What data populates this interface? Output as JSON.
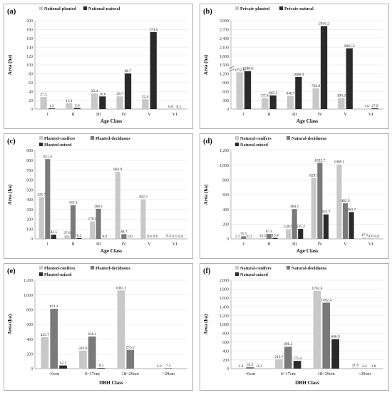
{
  "colors": {
    "c1": "#c8c8c8",
    "c2": "#7a7a7a",
    "c3": "#2a2a2a",
    "border": "#9a9a9a",
    "grid": "#e4e4e4"
  },
  "chart_data": [
    {
      "panel": "(a)",
      "type": "bar",
      "ylabel": "Area (ha)",
      "xlabel": "Age Class",
      "ylim": [
        0,
        200
      ],
      "yticks": [
        0,
        20,
        40,
        60,
        80,
        100,
        120,
        140,
        160,
        180,
        200
      ],
      "categories": [
        "I",
        "II",
        "III",
        "IV",
        "V",
        "VI"
      ],
      "legend_position": "top-left",
      "series": [
        {
          "name": "National-planted",
          "color": "c1",
          "values": [
            27.5,
            13.3,
            35.4,
            28.7,
            22.4,
            0.0
          ],
          "labels": [
            "27.5",
            "13.3",
            "35.4",
            "28.7",
            "22.4",
            "0.0"
          ]
        },
        {
          "name": "National-natural",
          "color": "c3",
          "values": [
            1.5,
            2.6,
            28.6,
            80.7,
            174.5,
            0.1
          ],
          "labels": [
            "1.5",
            "2.6",
            "28.6",
            "80.7",
            "174.5",
            "0.1"
          ]
        }
      ]
    },
    {
      "panel": "(b)",
      "type": "bar",
      "ylabel": "Area (ha)",
      "xlabel": "Age Class",
      "ylim": [
        0,
        3000
      ],
      "yticks": [
        0,
        300,
        600,
        900,
        1200,
        1500,
        1800,
        2100,
        2400,
        2700,
        3000
      ],
      "yticklabels": [
        "0",
        "300",
        "600",
        "900",
        "1,200",
        "1,500",
        "1,800",
        "2,100",
        "2,400",
        "2,700",
        "3,000"
      ],
      "scale": "broken",
      "categories": [
        "I",
        "II",
        "III",
        "IV",
        "V",
        "VI"
      ],
      "legend_position": "top-left",
      "series": [
        {
          "name": "Private-planted",
          "color": "c1",
          "values": [
            1252.0,
            375.6,
            448.7,
            702.9,
            380.3,
            7.0
          ],
          "labels": [
            "1252.0",
            "375.6",
            "448.7",
            "702.9",
            "380.3",
            "7.0"
          ]
        },
        {
          "name": "Private-natural",
          "color": "c3",
          "values": [
            1288.6,
            465.3,
            1088.9,
            2816.2,
            2061.5,
            27.9
          ],
          "labels": [
            "1288.6",
            "465.3",
            "1088.9",
            "2816.2",
            "2061.5",
            "27.9"
          ]
        }
      ]
    },
    {
      "panel": "(c)",
      "type": "bar",
      "ylabel": "Area (ha)",
      "xlabel": "Age Class",
      "ylim": [
        0,
        900
      ],
      "yticks": [
        0,
        100,
        200,
        300,
        400,
        500,
        600,
        700,
        800,
        900
      ],
      "categories": [
        "I",
        "II",
        "III",
        "IV",
        "V",
        "VI"
      ],
      "legend_position": "top-left",
      "series": [
        {
          "name": "Planted-conifers",
          "color": "c1",
          "values": [
            425.7,
            37.6,
            178.0,
            682.9,
            402.3,
            6.5
          ],
          "labels": [
            "425.7",
            "37.6",
            "178.0",
            "682.9",
            "402.3",
            "6.5"
          ]
        },
        {
          "name": "Planted-deciduous",
          "color": "c2",
          "values": [
            811.4,
            343.1,
            306.1,
            48.7,
            0.4,
            0.5
          ],
          "labels": [
            "811.4",
            "343.1",
            "306.1",
            "48.7",
            "0.4",
            "0.5"
          ]
        },
        {
          "name": "Planted-mixed",
          "color": "c3",
          "values": [
            42.5,
            8.2,
            0.0,
            0.0,
            0.0,
            0.0
          ],
          "labels": [
            "42.5",
            "8.2",
            "0.0",
            "0.0",
            "0.0",
            "0.0"
          ]
        }
      ]
    },
    {
      "panel": "(d)",
      "type": "bar",
      "ylabel": "Area (ha)",
      "xlabel": "Age Class",
      "ylim": [
        0,
        1200
      ],
      "yticks": [
        0,
        200,
        400,
        600,
        800,
        1000,
        1200
      ],
      "yticklabels": [
        "0",
        "200",
        "400",
        "600",
        "800",
        "1,000",
        "1,200"
      ],
      "categories": [
        "I",
        "II",
        "III",
        "IV",
        "V",
        "VI"
      ],
      "legend_position": "top-left",
      "series": [
        {
          "name": "Natural-conifers",
          "color": "c1",
          "values": [
            2.3,
            11.5,
            129.5,
            829.7,
            1009.2,
            17.1
          ],
          "labels": [
            "2.3",
            "11.5",
            "129.5",
            "829.7",
            "1009.2",
            "17.1"
          ]
        },
        {
          "name": "Natural-deciduous",
          "color": "c2",
          "values": [
            35.5,
            67.4,
            404.1,
            1032.7,
            482.9,
            4.0
          ],
          "labels": [
            "35.5",
            "67.4",
            "404.1",
            "1032.7",
            "482.9",
            "4.0"
          ]
        },
        {
          "name": "Natural-mixed",
          "color": "c3",
          "values": [
            0.3,
            13.4,
            135.2,
            331.7,
            363.7,
            0.0
          ],
          "labels": [
            "0.3",
            "13.4",
            "135.2",
            "331.7",
            "363.7",
            "0.0"
          ]
        }
      ]
    },
    {
      "panel": "(e)",
      "type": "bar",
      "ylabel": "Area (ha)",
      "xlabel": "DBH Class",
      "ylim": [
        0,
        1200
      ],
      "yticks": [
        0,
        200,
        400,
        600,
        800,
        1000,
        1200
      ],
      "yticklabels": [
        "0",
        "200",
        "400",
        "600",
        "800",
        "1,000",
        "1,200"
      ],
      "categories": [
        "<6cm",
        "6~17cm",
        "18~29cm",
        ">29cm"
      ],
      "legend_position": "top-left",
      "series": [
        {
          "name": "Planted-conifers",
          "color": "c1",
          "values": [
            425.7,
            243.8,
            1061.2,
            2.2
          ],
          "labels": [
            "425.7",
            "243.8",
            "1061.2",
            "2.2"
          ]
        },
        {
          "name": "Planted-deciduous",
          "color": "c2",
          "values": [
            811.4,
            436.1,
            255.2,
            7.5
          ],
          "labels": [
            "811.4",
            "436.1",
            "255.2",
            "7.5"
          ]
        },
        {
          "name": "Planted-mixed",
          "color": "c3",
          "values": [
            42.5,
            8.2,
            0.0,
            0.0
          ],
          "labels": [
            "42.5",
            "8.2",
            "",
            ""
          ]
        }
      ]
    },
    {
      "panel": "(f)",
      "type": "bar",
      "ylabel": "Area (ha)",
      "xlabel": "DBH Class",
      "ylim": [
        0,
        2000
      ],
      "yticks": [
        0,
        200,
        400,
        600,
        800,
        1000,
        1200,
        1400,
        1600,
        1800,
        2000
      ],
      "yticklabels": [
        "0",
        "200",
        "400",
        "600",
        "800",
        "1,000",
        "1,200",
        "1,400",
        "1,600",
        "1,800",
        "2,000"
      ],
      "categories": [
        "<6cm",
        "6~17cm",
        "18~29cm",
        ">29cm"
      ],
      "legend_position": "top-left",
      "series": [
        {
          "name": "Natural-conifers",
          "color": "c1",
          "values": [
            2.3,
            213.7,
            1761.6,
            21.6
          ],
          "labels": [
            "2.3",
            "213.7",
            "1761.6",
            "21.6"
          ]
        },
        {
          "name": "Natural-deciduous",
          "color": "c2",
          "values": [
            35.5,
            496.2,
            1492.4,
            2.4
          ],
          "labels": [
            "35.5",
            "496.2",
            "1492.4",
            "2.4"
          ]
        },
        {
          "name": "Natural-mixed",
          "color": "c3",
          "values": [
            0.3,
            175.4,
            666.9,
            1.8
          ],
          "labels": [
            "0.3",
            "175.4",
            "666.9",
            "1.8"
          ]
        }
      ]
    }
  ]
}
